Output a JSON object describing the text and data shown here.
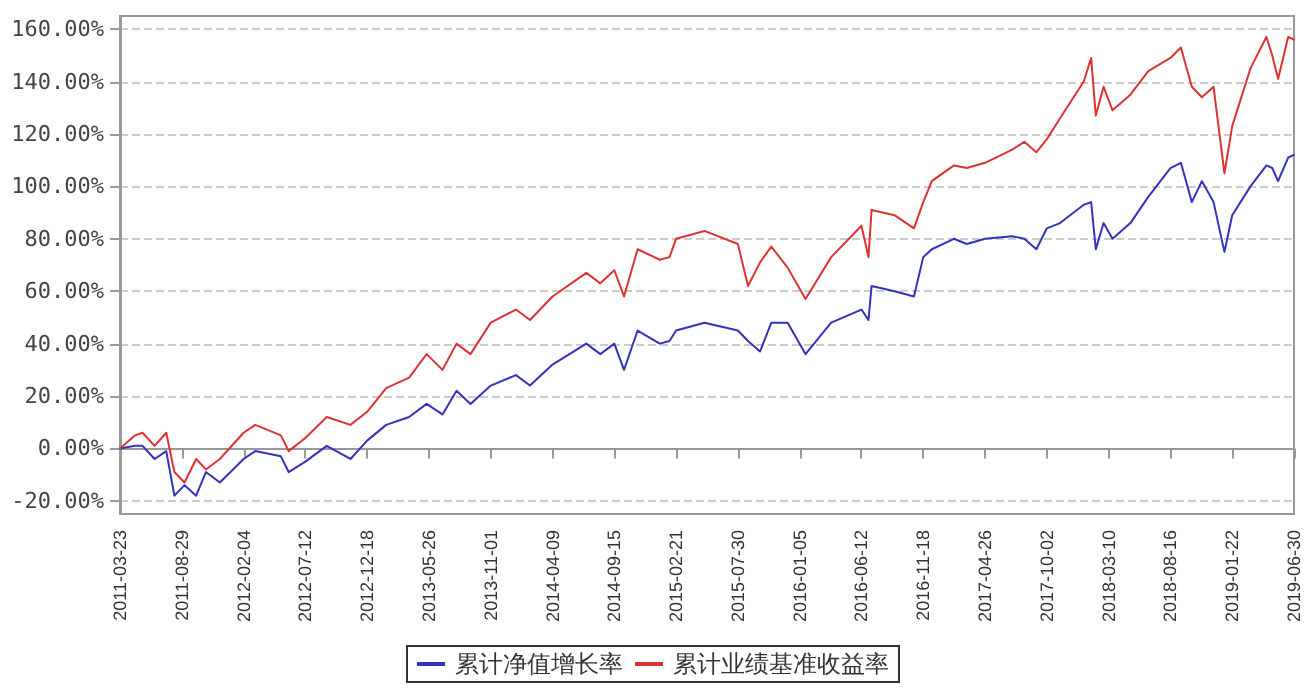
{
  "chart_data": {
    "type": "line",
    "x": [
      "2011-03-23",
      "2011-05-01",
      "2011-05-20",
      "2011-06-20",
      "2011-07-20",
      "2011-08-10",
      "2011-09-05",
      "2011-10-05",
      "2011-10-30",
      "2011-12-05",
      "2012-02-04",
      "2012-03-05",
      "2012-05-10",
      "2012-05-30",
      "2012-07-12",
      "2012-09-05",
      "2012-11-05",
      "2012-12-18",
      "2013-02-05",
      "2013-04-05",
      "2013-05-20",
      "2013-06-30",
      "2013-08-05",
      "2013-09-10",
      "2013-11-01",
      "2014-01-05",
      "2014-02-10",
      "2014-04-09",
      "2014-07-05",
      "2014-08-10",
      "2014-09-15",
      "2014-10-10",
      "2014-11-14",
      "2015-01-10",
      "2015-02-04",
      "2015-02-21",
      "2015-05-05",
      "2015-07-30",
      "2015-08-25",
      "2015-09-25",
      "2015-10-24",
      "2015-12-05",
      "2016-01-20",
      "2016-03-26",
      "2016-06-12",
      "2016-06-30",
      "2016-07-08",
      "2016-09-05",
      "2016-10-25",
      "2016-11-18",
      "2016-12-10",
      "2017-02-05",
      "2017-03-10",
      "2017-04-26",
      "2017-07-05",
      "2017-08-05",
      "2017-09-05",
      "2017-10-02",
      "2017-11-05",
      "2018-01-05",
      "2018-01-24",
      "2018-02-05",
      "2018-02-25",
      "2018-03-20",
      "2018-05-05",
      "2018-06-20",
      "2018-08-16",
      "2018-09-12",
      "2018-10-10",
      "2018-11-05",
      "2018-12-05",
      "2019-01-02",
      "2019-01-22",
      "2019-03-10",
      "2019-04-20",
      "2019-05-05",
      "2019-05-20",
      "2019-06-15",
      "2019-06-30"
    ],
    "series": [
      {
        "name": "累计净值增长率",
        "color": "#3333bb",
        "values": [
          0,
          1,
          1,
          -4,
          -1,
          -18,
          -14,
          -18,
          -9,
          -13,
          -4,
          -1,
          -3,
          -9,
          -5,
          1,
          -4,
          3,
          9,
          12,
          17,
          13,
          22,
          17,
          24,
          28,
          24,
          32,
          40,
          36,
          40,
          30,
          45,
          40,
          41,
          45,
          48,
          45,
          41,
          37,
          48,
          48,
          36,
          48,
          53,
          49,
          62,
          60,
          58,
          73,
          76,
          80,
          78,
          80,
          81,
          80,
          76,
          84,
          86,
          93,
          94,
          76,
          86,
          80,
          86,
          96,
          107,
          109,
          94,
          102,
          94,
          75,
          89,
          100,
          108,
          107,
          102,
          111,
          112
        ]
      },
      {
        "name": "累计业绩基准收益率",
        "color": "#dd3333",
        "values": [
          0,
          5,
          6,
          1,
          6,
          -9,
          -13,
          -4,
          -8,
          -4,
          6,
          9,
          5,
          -1,
          4,
          12,
          9,
          14,
          23,
          27,
          36,
          30,
          40,
          36,
          48,
          53,
          49,
          58,
          67,
          63,
          68,
          58,
          76,
          72,
          73,
          80,
          83,
          78,
          62,
          71,
          77,
          69,
          57,
          73,
          85,
          73,
          91,
          89,
          84,
          94,
          102,
          108,
          107,
          109,
          114,
          117,
          113,
          118,
          126,
          140,
          149,
          127,
          138,
          129,
          135,
          144,
          149,
          153,
          138,
          134,
          138,
          105,
          123,
          145,
          157,
          150,
          141,
          157,
          156
        ]
      }
    ],
    "xlim": [
      "2011-03-23",
      "2019-06-30"
    ],
    "xticks": [
      "2011-03-23",
      "2011-08-29",
      "2012-02-04",
      "2012-07-12",
      "2012-12-18",
      "2013-05-26",
      "2013-11-01",
      "2014-04-09",
      "2014-09-15",
      "2015-02-21",
      "2015-07-30",
      "2016-01-05",
      "2016-06-12",
      "2016-11-18",
      "2017-04-26",
      "2017-10-02",
      "2018-03-10",
      "2018-08-16",
      "2019-01-22",
      "2019-06-30"
    ],
    "ylim": [
      -25,
      165
    ],
    "yticks": [
      {
        "value": -20,
        "label": "-20.00%"
      },
      {
        "value": 0,
        "label": "0.00%"
      },
      {
        "value": 20,
        "label": "20.00%"
      },
      {
        "value": 40,
        "label": "40.00%"
      },
      {
        "value": 60,
        "label": "60.00%"
      },
      {
        "value": 80,
        "label": "80.00%"
      },
      {
        "value": 100,
        "label": "100.00%"
      },
      {
        "value": 120,
        "label": "120.00%"
      },
      {
        "value": 140,
        "label": "140.00%"
      },
      {
        "value": 160,
        "label": "160.00%"
      }
    ],
    "grid": "y",
    "legend": "bottom",
    "marker": "none",
    "line_style": "solid"
  }
}
